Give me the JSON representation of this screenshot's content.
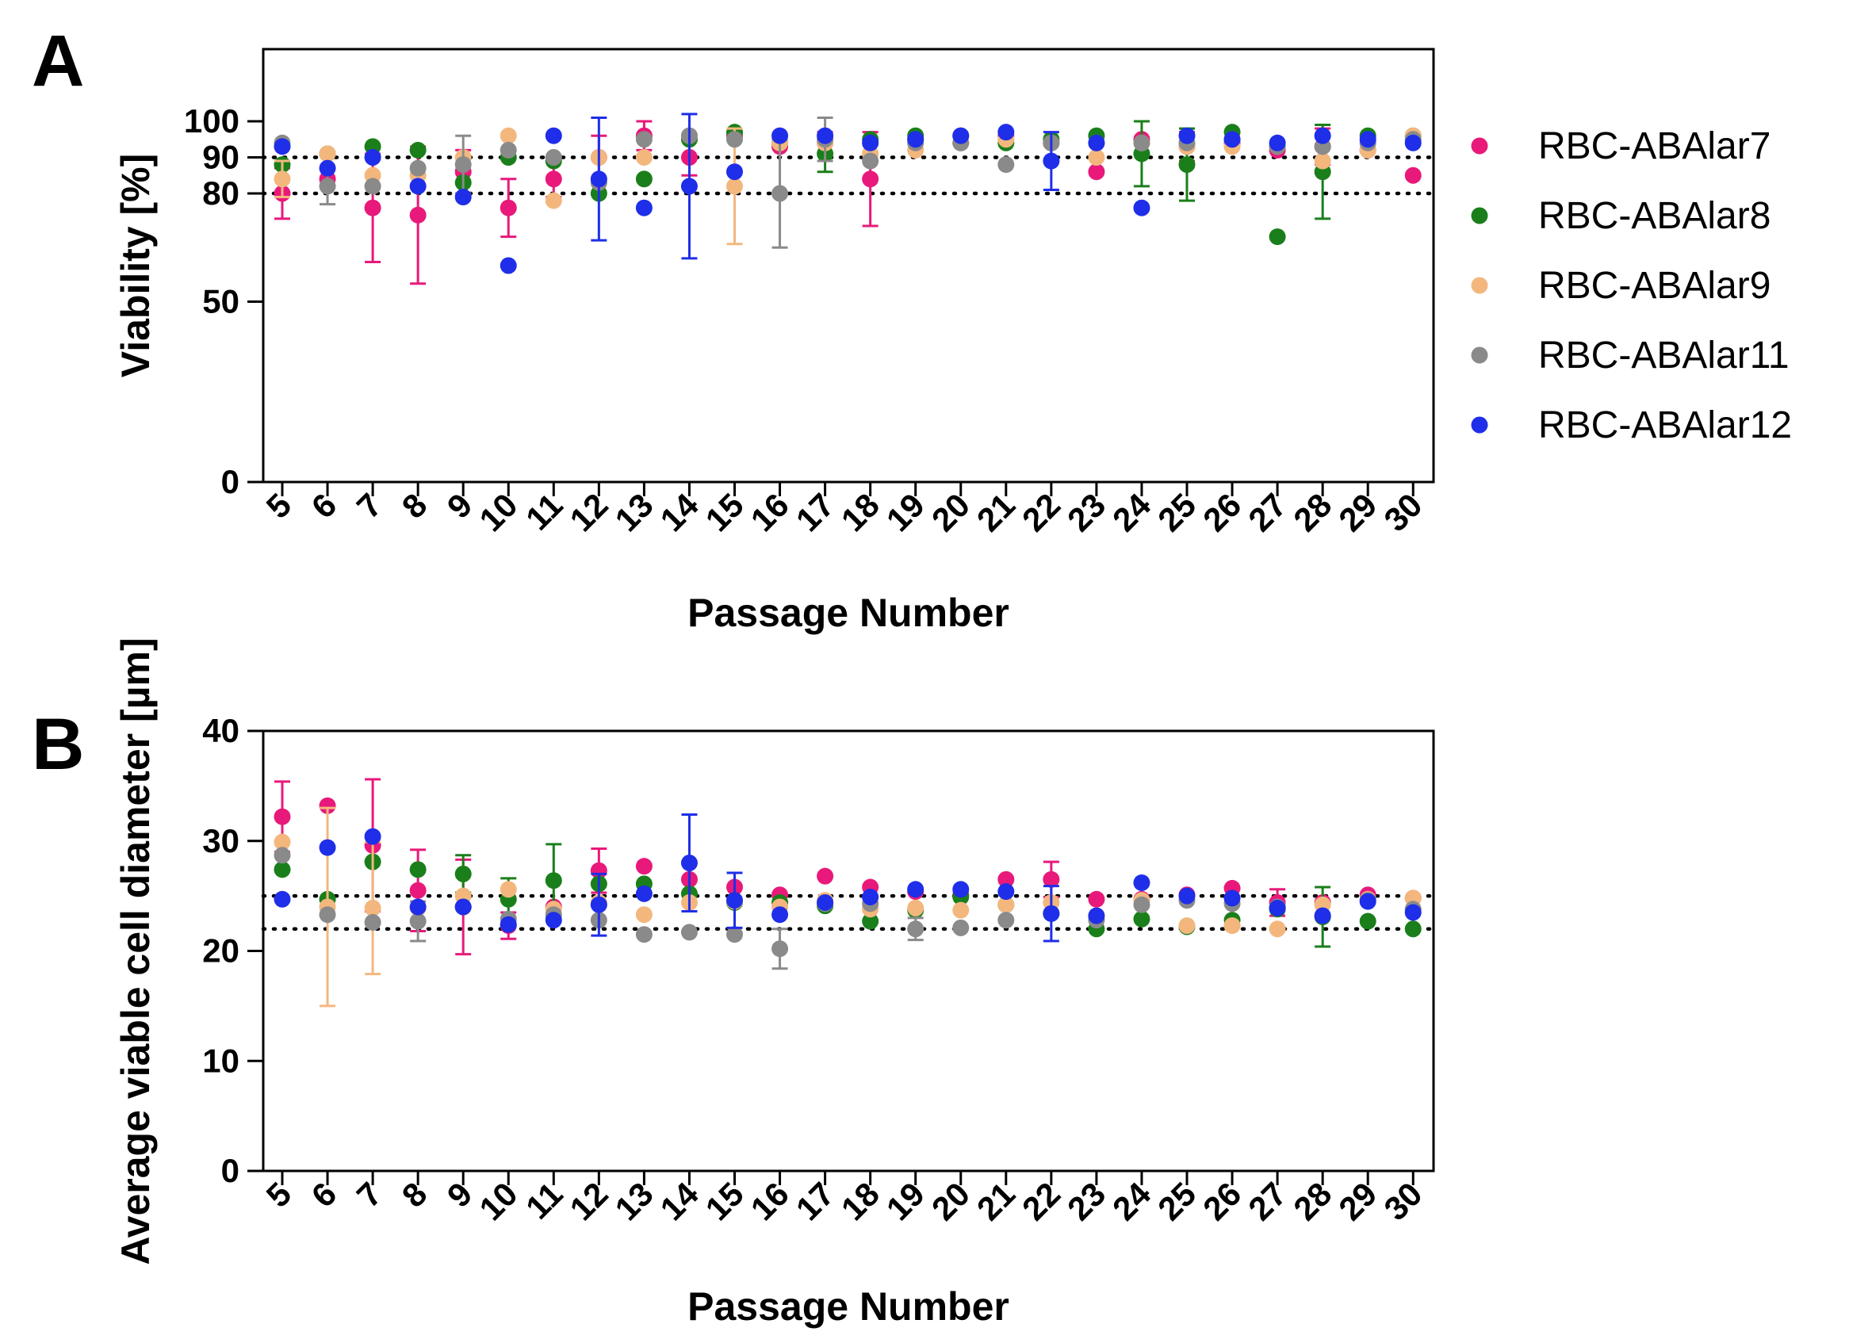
{
  "figure": {
    "panels": [
      "A",
      "B"
    ],
    "legend": [
      {
        "name": "RBC-ABAlar7",
        "color": "#e8197a"
      },
      {
        "name": "RBC-ABAlar8",
        "color": "#1a7f1a"
      },
      {
        "name": "RBC-ABAlar9",
        "color": "#f3b77e"
      },
      {
        "name": "RBC-ABAlar11",
        "color": "#8a8a8a"
      },
      {
        "name": "RBC-ABAlar12",
        "color": "#1f2ee8"
      }
    ]
  },
  "chart_data": [
    {
      "panel": "A",
      "type": "scatter",
      "title": "",
      "xlabel": "Passage Number",
      "ylabel": "Viability [%]",
      "categories": [
        "5",
        "6",
        "7",
        "8",
        "9",
        "10",
        "11",
        "12",
        "13",
        "14",
        "15",
        "16",
        "17",
        "18",
        "19",
        "20",
        "21",
        "22",
        "23",
        "24",
        "25",
        "26",
        "27",
        "28",
        "29",
        "30"
      ],
      "ylim": [
        0,
        120
      ],
      "yticks": [
        0,
        50,
        80,
        90,
        100
      ],
      "reference_lines": [
        80,
        90
      ],
      "series": [
        {
          "name": "RBC-ABAlar7",
          "color": "#e8197a",
          "values": [
            80,
            84,
            76,
            74,
            86,
            76,
            84,
            90,
            96,
            90,
            96,
            93,
            94,
            84,
            95,
            94,
            96,
            94,
            86,
            95,
            93,
            94,
            92,
            93,
            92,
            85
          ],
          "errors": [
            7,
            0,
            15,
            19,
            6,
            8,
            5,
            6,
            4,
            5,
            0,
            0,
            3,
            13,
            0,
            0,
            0,
            0,
            0,
            0,
            4,
            0,
            0,
            5,
            0,
            0
          ]
        },
        {
          "name": "RBC-ABAlar8",
          "color": "#1a7f1a",
          "values": [
            88,
            91,
            93,
            92,
            83,
            90,
            89,
            80,
            84,
            95,
            97,
            94,
            91,
            95,
            96,
            96,
            94,
            95,
            96,
            91,
            88,
            97,
            68,
            86,
            96,
            96
          ],
          "errors": [
            0,
            0,
            0,
            0,
            0,
            0,
            0,
            0,
            0,
            0,
            0,
            0,
            5,
            0,
            0,
            0,
            0,
            0,
            0,
            9,
            10,
            0,
            0,
            13,
            0,
            0
          ]
        },
        {
          "name": "RBC-ABAlar9",
          "color": "#f3b77e",
          "values": [
            84,
            91,
            85,
            85,
            90,
            96,
            78,
            90,
            90,
            96,
            82,
            94,
            94,
            91,
            92,
            94,
            95,
            94,
            90,
            94,
            93,
            93,
            93,
            89,
            92,
            96
          ],
          "errors": [
            5,
            0,
            0,
            0,
            0,
            0,
            0,
            0,
            0,
            0,
            16,
            0,
            0,
            0,
            0,
            0,
            0,
            0,
            0,
            0,
            0,
            0,
            0,
            0,
            0,
            0
          ]
        },
        {
          "name": "RBC-ABAlar11",
          "color": "#8a8a8a",
          "values": [
            94,
            82,
            82,
            87,
            88,
            92,
            90,
            83,
            95,
            96,
            95,
            80,
            95,
            89,
            94,
            94,
            88,
            94,
            94,
            94,
            94,
            95,
            93,
            93,
            94,
            95
          ],
          "errors": [
            0,
            5,
            0,
            0,
            8,
            0,
            0,
            0,
            0,
            0,
            0,
            15,
            6,
            0,
            0,
            0,
            0,
            0,
            0,
            0,
            0,
            0,
            0,
            0,
            0,
            0
          ]
        },
        {
          "name": "RBC-ABAlar12",
          "color": "#1f2ee8",
          "values": [
            93,
            87,
            90,
            82,
            79,
            60,
            96,
            84,
            76,
            82,
            86,
            96,
            96,
            94,
            95,
            96,
            97,
            89,
            94,
            76,
            96,
            95,
            94,
            96,
            95,
            94
          ],
          "errors": [
            0,
            0,
            0,
            0,
            0,
            0,
            0,
            17,
            0,
            20,
            0,
            0,
            0,
            0,
            0,
            0,
            0,
            8,
            0,
            0,
            0,
            0,
            0,
            0,
            0,
            0
          ]
        }
      ]
    },
    {
      "panel": "B",
      "type": "scatter",
      "title": "",
      "xlabel": "Passage Number",
      "ylabel": "Average viable cell diameter [µm]",
      "categories": [
        "5",
        "6",
        "7",
        "8",
        "9",
        "10",
        "11",
        "12",
        "13",
        "14",
        "15",
        "16",
        "17",
        "18",
        "19",
        "20",
        "21",
        "22",
        "23",
        "24",
        "25",
        "26",
        "27",
        "28",
        "29",
        "30"
      ],
      "ylim": [
        0,
        40
      ],
      "yticks": [
        0,
        10,
        20,
        30,
        40
      ],
      "reference_lines": [
        22,
        25
      ],
      "series": [
        {
          "name": "RBC-ABAlar7",
          "color": "#e8197a",
          "values": [
            32.2,
            33.2,
            29.6,
            25.5,
            24.0,
            22.3,
            24.0,
            27.3,
            27.7,
            26.5,
            25.8,
            25.1,
            26.8,
            25.8,
            25.4,
            25.1,
            26.5,
            26.5,
            24.7,
            24.7,
            25.1,
            25.7,
            24.4,
            24.4,
            25.1,
            24.8
          ],
          "errors": [
            3.2,
            0,
            6,
            3.7,
            4.3,
            1.2,
            0,
            2,
            0,
            0,
            0,
            0,
            0,
            0,
            0,
            0,
            0,
            1.6,
            0,
            0,
            0,
            0,
            1.2,
            0,
            0,
            0
          ]
        },
        {
          "name": "RBC-ABAlar8",
          "color": "#1a7f1a",
          "values": [
            27.4,
            24.7,
            28.1,
            27.4,
            27.0,
            24.7,
            26.4,
            26.1,
            26.1,
            25.2,
            24.4,
            24.4,
            24.1,
            22.7,
            23.7,
            24.9,
            24.2,
            23.4,
            22.0,
            22.9,
            22.2,
            22.8,
            23.8,
            23.1,
            22.7,
            22.0
          ],
          "errors": [
            0,
            0,
            0,
            0,
            1.7,
            1.9,
            3.3,
            0,
            0,
            0,
            0,
            0,
            0,
            0,
            0,
            0,
            0,
            0,
            0,
            0,
            0,
            0,
            0,
            2.7,
            0,
            0
          ]
        },
        {
          "name": "RBC-ABAlar9",
          "color": "#f3b77e",
          "values": [
            29.9,
            24.0,
            23.9,
            23.9,
            25.0,
            25.6,
            23.8,
            24.4,
            23.3,
            24.4,
            24.5,
            24.0,
            24.6,
            23.8,
            23.9,
            23.7,
            24.2,
            24.4,
            22.9,
            24.6,
            22.3,
            22.3,
            22.0,
            24.2,
            24.7,
            24.8
          ],
          "errors": [
            0,
            9,
            6,
            0,
            0,
            0,
            0,
            0,
            0,
            0,
            0,
            0,
            0,
            0,
            0,
            0,
            0,
            0,
            0,
            0,
            0,
            0,
            0,
            0,
            0,
            0
          ]
        },
        {
          "name": "RBC-ABAlar11",
          "color": "#8a8a8a",
          "values": [
            28.7,
            23.3,
            22.6,
            22.7,
            24.0,
            22.9,
            23.3,
            22.8,
            21.5,
            21.7,
            21.5,
            20.2,
            24.3,
            24.3,
            22.0,
            22.1,
            22.8,
            23.4,
            22.8,
            24.2,
            24.6,
            24.3,
            24.0,
            23.2,
            24.6,
            23.8
          ],
          "errors": [
            0,
            0,
            0,
            1.8,
            0,
            0,
            0,
            0,
            0,
            0,
            0,
            1.8,
            0,
            0,
            1,
            0,
            0,
            0,
            0,
            0,
            0,
            0,
            0,
            0,
            0,
            0
          ]
        },
        {
          "name": "RBC-ABAlar12",
          "color": "#1f2ee8",
          "values": [
            24.7,
            29.4,
            30.4,
            24.0,
            24.0,
            22.4,
            22.8,
            24.2,
            25.2,
            28.0,
            24.6,
            23.3,
            24.4,
            24.9,
            25.6,
            25.6,
            25.4,
            23.4,
            23.2,
            26.2,
            25.0,
            24.8,
            23.9,
            23.2,
            24.5,
            23.5
          ],
          "errors": [
            0,
            0,
            0,
            0,
            0,
            0,
            0,
            2.8,
            0,
            4.4,
            2.5,
            0,
            0,
            0,
            0,
            0,
            0,
            2.5,
            0,
            0,
            0,
            0,
            0,
            0,
            0,
            0
          ]
        }
      ]
    }
  ]
}
